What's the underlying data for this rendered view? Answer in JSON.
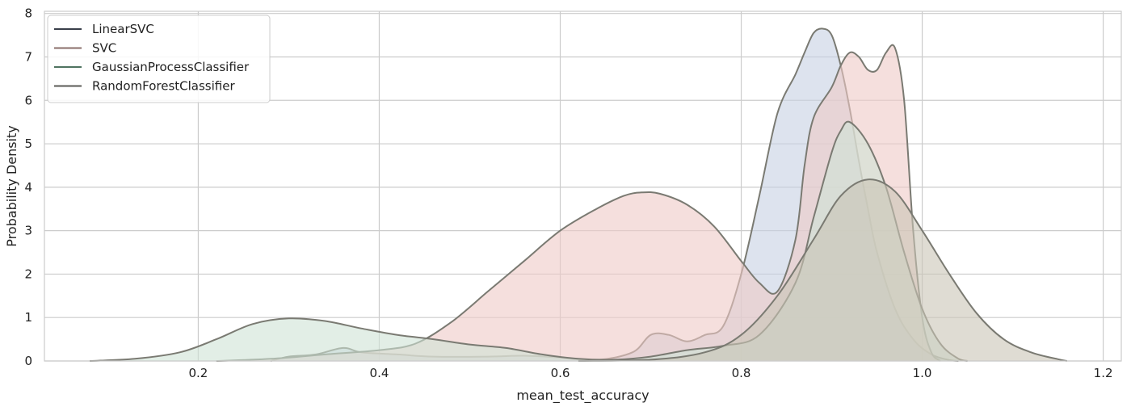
{
  "chart_data": {
    "type": "area",
    "title": "",
    "xlabel": "mean_test_accuracy",
    "ylabel": "Probability Density",
    "xlim": [
      0.03,
      1.22
    ],
    "ylim": [
      0,
      8.05
    ],
    "xticks": [
      0.2,
      0.4,
      0.6,
      0.8,
      1.0,
      1.2
    ],
    "xtick_labels": [
      "0.2",
      "0.4",
      "0.6",
      "0.8",
      "1.0",
      "1.2"
    ],
    "yticks": [
      0,
      1,
      2,
      3,
      4,
      5,
      6,
      7,
      8
    ],
    "ytick_labels": [
      "0",
      "1",
      "2",
      "3",
      "4",
      "5",
      "6",
      "7",
      "8"
    ],
    "grid": true,
    "legend_position": "top-left",
    "series": [
      {
        "name": "LinearSVC",
        "fill": "#c7d1e3",
        "line": "#3a3f4a",
        "points": [
          [
            0.28,
            0
          ],
          [
            0.3,
            0.1
          ],
          [
            0.33,
            0.15
          ],
          [
            0.36,
            0.3
          ],
          [
            0.38,
            0.2
          ],
          [
            0.42,
            0.15
          ],
          [
            0.46,
            0.1
          ],
          [
            0.52,
            0.1
          ],
          [
            0.56,
            0.12
          ],
          [
            0.6,
            0.08
          ],
          [
            0.64,
            0.02
          ],
          [
            0.68,
            0.2
          ],
          [
            0.7,
            0.6
          ],
          [
            0.72,
            0.6
          ],
          [
            0.74,
            0.45
          ],
          [
            0.76,
            0.6
          ],
          [
            0.78,
            0.8
          ],
          [
            0.8,
            2.0
          ],
          [
            0.82,
            3.8
          ],
          [
            0.84,
            5.7
          ],
          [
            0.86,
            6.6
          ],
          [
            0.87,
            7.1
          ],
          [
            0.88,
            7.55
          ],
          [
            0.89,
            7.65
          ],
          [
            0.9,
            7.5
          ],
          [
            0.91,
            6.8
          ],
          [
            0.92,
            5.8
          ],
          [
            0.93,
            4.6
          ],
          [
            0.94,
            3.5
          ],
          [
            0.95,
            2.5
          ],
          [
            0.97,
            1.2
          ],
          [
            0.99,
            0.5
          ],
          [
            1.01,
            0.15
          ],
          [
            1.03,
            0.02
          ],
          [
            1.04,
            0
          ]
        ]
      },
      {
        "name": "SVC",
        "fill": "#efc9c6",
        "line": "#8a6e6a",
        "points": [
          [
            0.22,
            0
          ],
          [
            0.28,
            0.05
          ],
          [
            0.34,
            0.15
          ],
          [
            0.4,
            0.25
          ],
          [
            0.44,
            0.4
          ],
          [
            0.48,
            0.9
          ],
          [
            0.52,
            1.6
          ],
          [
            0.56,
            2.3
          ],
          [
            0.6,
            3.0
          ],
          [
            0.64,
            3.5
          ],
          [
            0.67,
            3.8
          ],
          [
            0.69,
            3.88
          ],
          [
            0.71,
            3.85
          ],
          [
            0.74,
            3.6
          ],
          [
            0.77,
            3.1
          ],
          [
            0.8,
            2.3
          ],
          [
            0.82,
            1.8
          ],
          [
            0.84,
            1.6
          ],
          [
            0.86,
            2.8
          ],
          [
            0.87,
            4.5
          ],
          [
            0.88,
            5.6
          ],
          [
            0.9,
            6.3
          ],
          [
            0.91,
            6.8
          ],
          [
            0.92,
            7.1
          ],
          [
            0.93,
            7.0
          ],
          [
            0.94,
            6.7
          ],
          [
            0.95,
            6.7
          ],
          [
            0.96,
            7.1
          ],
          [
            0.97,
            7.2
          ],
          [
            0.98,
            6.0
          ],
          [
            0.99,
            3.0
          ],
          [
            1.0,
            1.0
          ],
          [
            1.01,
            0.2
          ],
          [
            1.02,
            0
          ]
        ]
      },
      {
        "name": "GaussianProcessClassifier",
        "fill": "#cfe3d6",
        "line": "#4f7360",
        "points": [
          [
            0.08,
            0
          ],
          [
            0.13,
            0.05
          ],
          [
            0.18,
            0.2
          ],
          [
            0.22,
            0.5
          ],
          [
            0.26,
            0.85
          ],
          [
            0.3,
            0.98
          ],
          [
            0.34,
            0.92
          ],
          [
            0.38,
            0.75
          ],
          [
            0.42,
            0.6
          ],
          [
            0.46,
            0.5
          ],
          [
            0.5,
            0.38
          ],
          [
            0.54,
            0.3
          ],
          [
            0.58,
            0.15
          ],
          [
            0.62,
            0.05
          ],
          [
            0.66,
            0.03
          ],
          [
            0.7,
            0.1
          ],
          [
            0.74,
            0.25
          ],
          [
            0.78,
            0.35
          ],
          [
            0.82,
            0.6
          ],
          [
            0.86,
            1.8
          ],
          [
            0.88,
            3.3
          ],
          [
            0.9,
            4.8
          ],
          [
            0.91,
            5.3
          ],
          [
            0.92,
            5.5
          ],
          [
            0.94,
            5.0
          ],
          [
            0.96,
            4.0
          ],
          [
            0.98,
            2.5
          ],
          [
            1.0,
            1.2
          ],
          [
            1.02,
            0.4
          ],
          [
            1.04,
            0.05
          ],
          [
            1.05,
            0
          ]
        ]
      },
      {
        "name": "RandomForestClassifier",
        "fill": "#c9c4b6",
        "line": "#5a5a55",
        "points": [
          [
            0.62,
            0
          ],
          [
            0.7,
            0.03
          ],
          [
            0.76,
            0.2
          ],
          [
            0.8,
            0.6
          ],
          [
            0.84,
            1.5
          ],
          [
            0.88,
            2.8
          ],
          [
            0.91,
            3.8
          ],
          [
            0.94,
            4.18
          ],
          [
            0.97,
            3.9
          ],
          [
            1.0,
            3.0
          ],
          [
            1.03,
            2.0
          ],
          [
            1.06,
            1.1
          ],
          [
            1.09,
            0.5
          ],
          [
            1.12,
            0.2
          ],
          [
            1.15,
            0.04
          ],
          [
            1.16,
            0
          ]
        ]
      }
    ]
  }
}
